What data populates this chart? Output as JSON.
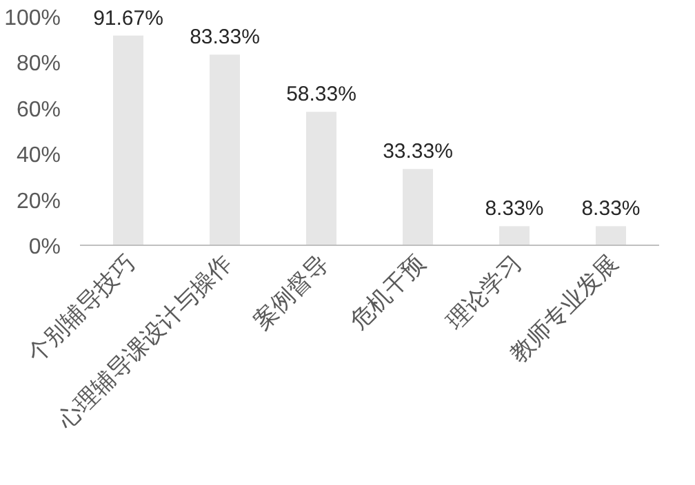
{
  "chart_data": {
    "type": "bar",
    "categories": [
      "个别辅导技巧",
      "心理辅导课设计与操作",
      "案例督导",
      "危机干预",
      "理论学习",
      "教师专业发展"
    ],
    "values": [
      91.67,
      83.33,
      58.33,
      33.33,
      8.33,
      8.33
    ],
    "value_labels": [
      "91.67%",
      "83.33%",
      "58.33%",
      "33.33%",
      "8.33%",
      "8.33%"
    ],
    "color": "#e6e6e6",
    "ylim": [
      0,
      100
    ],
    "yticks": [
      {
        "value": 0,
        "label": "0%"
      },
      {
        "value": 20,
        "label": "20%"
      },
      {
        "value": 40,
        "label": "40%"
      },
      {
        "value": 60,
        "label": "60%"
      },
      {
        "value": 80,
        "label": "80%"
      },
      {
        "value": 100,
        "label": "100%"
      }
    ],
    "grid": false
  }
}
